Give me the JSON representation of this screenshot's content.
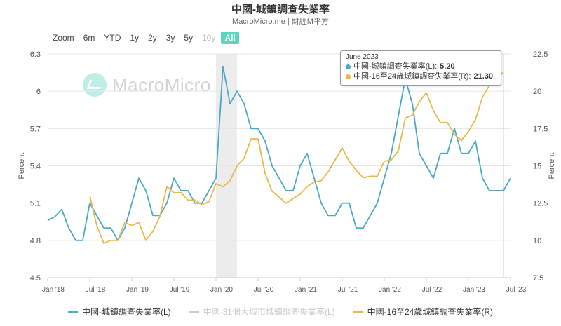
{
  "header": {
    "title": "中國-城鎮調查失業率",
    "subtitle": "MacroMicro.me | 財經M平方"
  },
  "watermark": {
    "text": "MacroMicro",
    "icon": "macromicro-logo-icon"
  },
  "range_selector": {
    "buttons": [
      {
        "label": "Zoom",
        "state": "label"
      },
      {
        "label": "6m",
        "state": "normal"
      },
      {
        "label": "YTD",
        "state": "normal"
      },
      {
        "label": "1y",
        "state": "normal"
      },
      {
        "label": "2y",
        "state": "normal"
      },
      {
        "label": "3y",
        "state": "normal"
      },
      {
        "label": "5y",
        "state": "normal"
      },
      {
        "label": "10y",
        "state": "disabled"
      },
      {
        "label": "All",
        "state": "active"
      }
    ]
  },
  "tooltip": {
    "date": "June 2023",
    "rows": [
      {
        "label": "中國-城鎮調查失業率(L): ",
        "value": "5.20",
        "color": "#4aa8c8"
      },
      {
        "label": "中國-16至24歲城鎮調查失業率(R): ",
        "value": "21.30",
        "color": "#e8b84a"
      }
    ]
  },
  "legend": [
    {
      "label": "中國-城鎮調查失業率(L)",
      "color": "#4aa8c8",
      "hidden": false
    },
    {
      "label": "中國-31個大城市城鎮調查失業率(L)",
      "color": "#cccccc",
      "hidden": true
    },
    {
      "label": "中國-16至24歲城鎮調查失業率(R)",
      "color": "#e8b84a",
      "hidden": false
    }
  ],
  "chart_data": {
    "type": "line",
    "x_start": "2018-01",
    "x_end": "2023-07",
    "x_ticks": [
      "Jan '18",
      "Jul '18",
      "Jan '19",
      "Jul '19",
      "Jan '20",
      "Jul '20",
      "Jan '21",
      "Jul '21",
      "Jan '22",
      "Jul '22",
      "Jan '23",
      "Jul '23"
    ],
    "ylabel_left": "Percent",
    "ylabel_right": "Percent",
    "y_left_lim": [
      4.5,
      6.3
    ],
    "y_left_ticks": [
      "4.5",
      "4.8",
      "5.1",
      "5.4",
      "5.7",
      "6",
      "6.3"
    ],
    "y_right_lim": [
      7.5,
      22.5
    ],
    "y_right_ticks": [
      "7.5",
      "10",
      "12.5",
      "15",
      "17.5",
      "20",
      "22.5"
    ],
    "shaded_range": [
      "2020-01",
      "2020-04"
    ],
    "series": [
      {
        "name": "中國-城鎮調查失業率(L)",
        "axis": "left",
        "color": "#4aa8c8",
        "start": "2018-01",
        "values": [
          4.96,
          4.99,
          5.05,
          4.9,
          4.8,
          4.8,
          5.1,
          5.0,
          4.9,
          4.9,
          4.8,
          4.9,
          5.1,
          5.3,
          5.2,
          5.0,
          5.0,
          5.1,
          5.3,
          5.2,
          5.2,
          5.1,
          5.1,
          5.2,
          5.3,
          6.2,
          5.9,
          6.0,
          5.9,
          5.7,
          5.7,
          5.6,
          5.4,
          5.3,
          5.2,
          5.2,
          5.4,
          5.5,
          5.3,
          5.1,
          5.0,
          5.0,
          5.1,
          5.1,
          4.9,
          4.9,
          5.0,
          5.1,
          5.3,
          5.5,
          5.8,
          6.1,
          5.9,
          5.5,
          5.4,
          5.3,
          5.5,
          5.5,
          5.7,
          5.5,
          5.5,
          5.6,
          5.3,
          5.2,
          5.2,
          5.2,
          5.3
        ]
      },
      {
        "name": "中國-16至24歲城鎮調查失業率(R)",
        "axis": "right",
        "color": "#e8b84a",
        "start": "2018-07",
        "values": [
          13.0,
          11.0,
          9.8,
          10.0,
          10.0,
          11.2,
          11.0,
          11.2,
          10.0,
          10.6,
          11.6,
          13.6,
          13.2,
          13.2,
          12.7,
          12.7,
          12.4,
          12.6,
          13.8,
          13.6,
          14.0,
          15.0,
          15.5,
          16.8,
          16.8,
          14.5,
          13.3,
          12.9,
          12.5,
          12.8,
          13.1,
          13.6,
          13.9,
          14.0,
          14.6,
          15.4,
          16.2,
          15.3,
          14.7,
          14.2,
          14.3,
          14.3,
          15.3,
          15.4,
          16.0,
          18.2,
          18.4,
          19.3,
          19.9,
          18.7,
          17.9,
          17.9,
          17.1,
          16.7,
          17.3,
          18.1,
          19.6,
          20.4,
          20.8,
          21.3
        ]
      }
    ]
  }
}
